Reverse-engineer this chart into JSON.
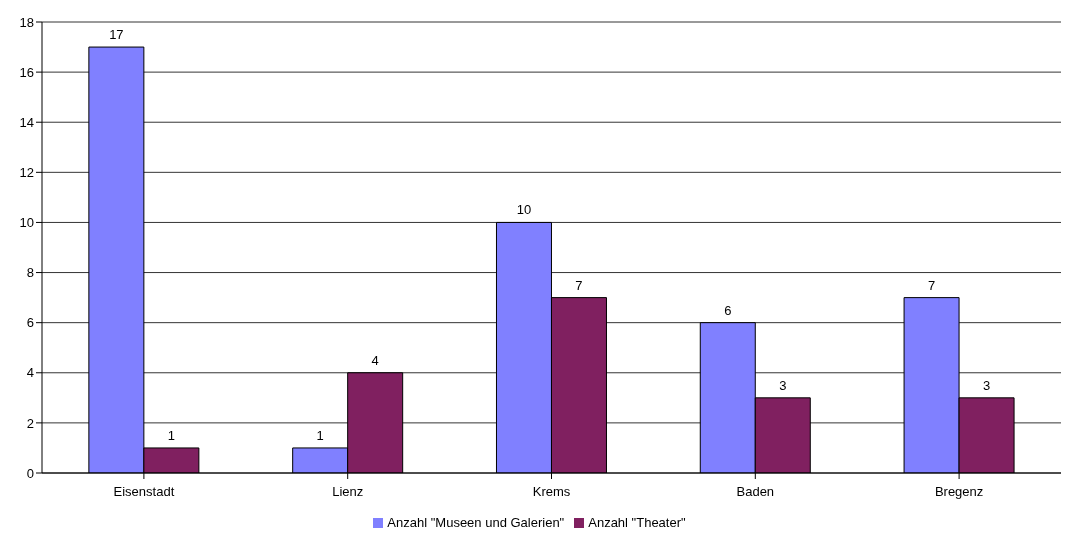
{
  "chart_data": {
    "type": "bar",
    "categories": [
      "Eisenstadt",
      "Lienz",
      "Krems",
      "Baden",
      "Bregenz"
    ],
    "series": [
      {
        "name": "Anzahl \"Museen und Galerien\"",
        "color": "#8080ff",
        "values": [
          17,
          1,
          10,
          6,
          7
        ]
      },
      {
        "name": "Anzahl \"Theater\"",
        "color": "#802060",
        "values": [
          1,
          4,
          7,
          3,
          3
        ]
      }
    ],
    "ylim": [
      0,
      18
    ],
    "yticks": [
      0,
      2,
      4,
      6,
      8,
      10,
      12,
      14,
      16,
      18
    ],
    "grid": "y",
    "legend": "bottom",
    "data_labels": true
  }
}
